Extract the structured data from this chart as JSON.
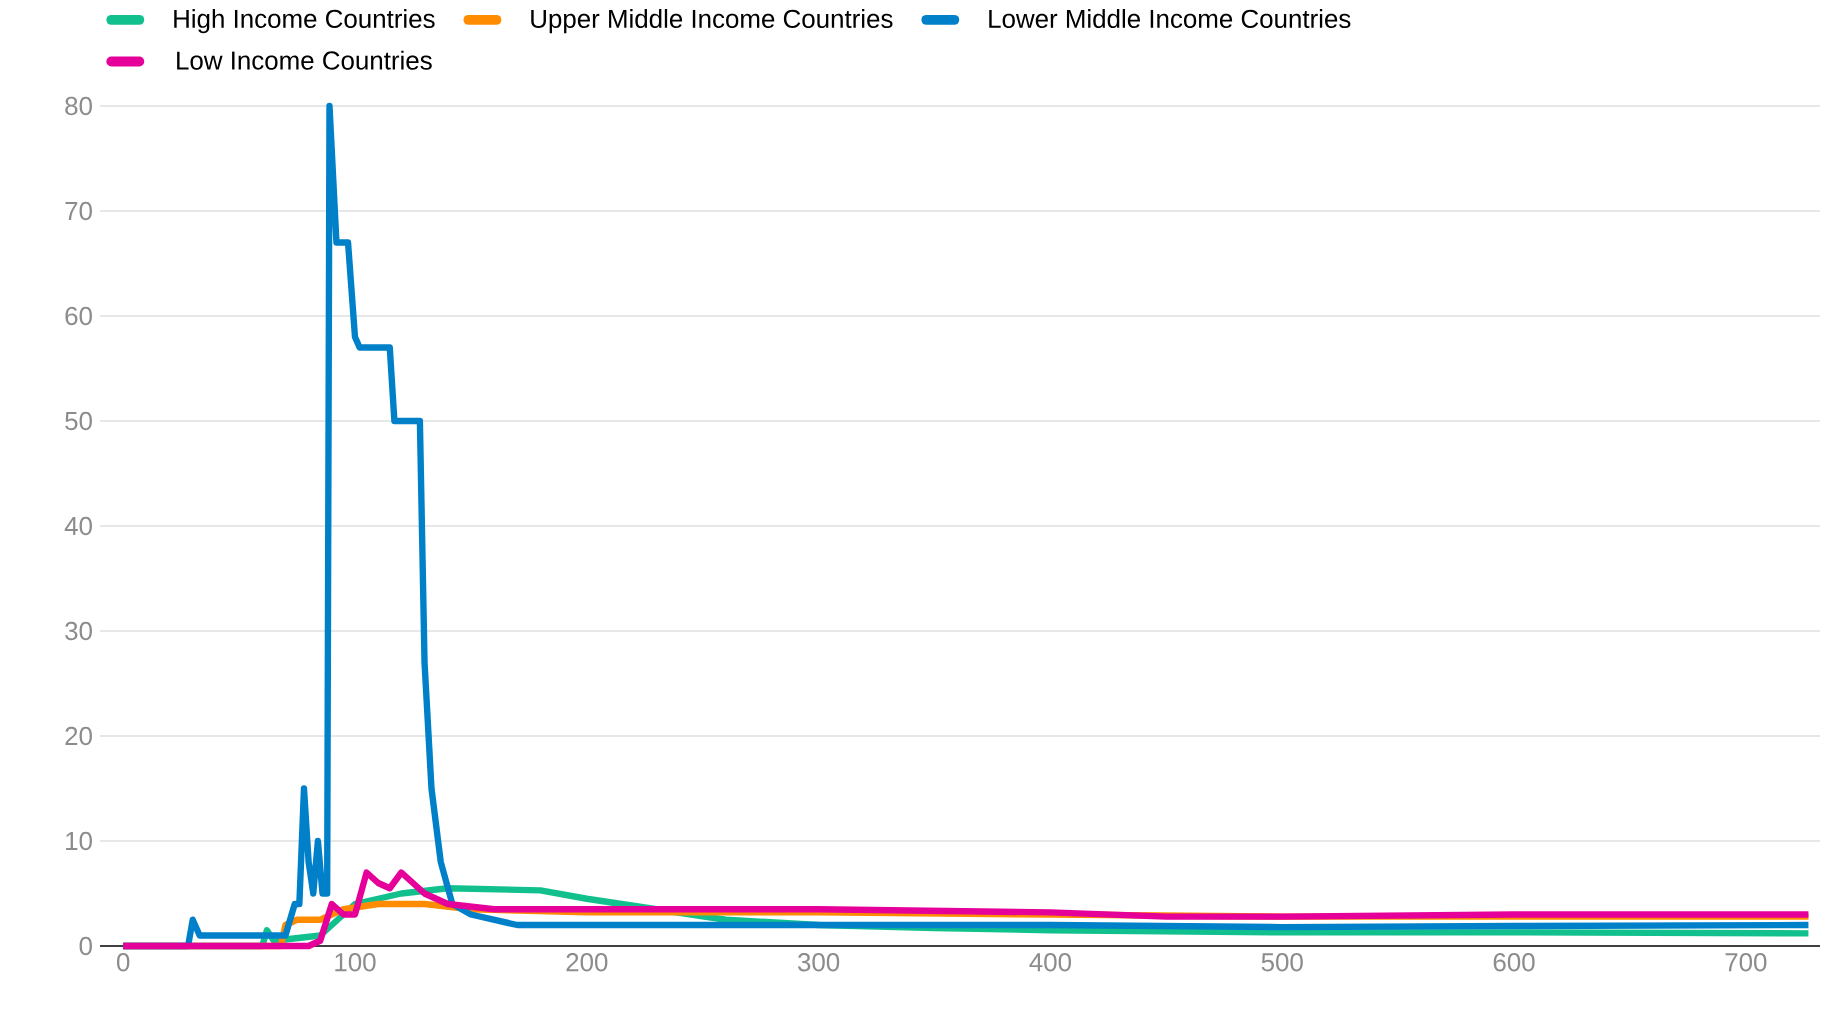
{
  "chart_data": {
    "type": "line",
    "xlim": [
      -10,
      732
    ],
    "ylim": [
      0,
      80
    ],
    "xticks": [
      0,
      100,
      200,
      300,
      400,
      500,
      600,
      700
    ],
    "yticks": [
      0,
      10,
      20,
      30,
      40,
      50,
      60,
      70,
      80
    ],
    "grid": "y",
    "legend": "top",
    "marker": "none",
    "line_style": "solid",
    "series": [
      {
        "name": "High Income Countries",
        "color": "#12c08e",
        "x": [
          0,
          60,
          62,
          65,
          85,
          100,
          120,
          140,
          180,
          200,
          230,
          260,
          300,
          350,
          400,
          500,
          600,
          727
        ],
        "values": [
          0,
          0,
          1.5,
          0.5,
          1,
          4,
          5,
          5.5,
          5.3,
          4.5,
          3.5,
          2.5,
          2,
          1.7,
          1.5,
          1.3,
          1.3,
          1.2
        ]
      },
      {
        "name": "Upper Middle Income Countries",
        "color": "#ff8c00",
        "x": [
          0,
          68,
          70,
          75,
          85,
          95,
          110,
          130,
          150,
          200,
          300,
          400,
          500,
          600,
          727
        ],
        "values": [
          0,
          0,
          2,
          2.5,
          2.5,
          3.5,
          4,
          4,
          3.5,
          3.2,
          3.2,
          3,
          2.8,
          2.8,
          2.8
        ]
      },
      {
        "name": "Lower Middle Income Countries",
        "color": "#0080c8",
        "x": [
          0,
          28,
          30,
          33,
          70,
          74,
          76,
          78,
          80,
          82,
          84,
          86,
          88,
          89,
          92,
          97,
          100,
          102,
          115,
          117,
          128,
          130,
          133,
          137,
          142,
          150,
          170,
          200,
          300,
          400,
          500,
          600,
          727
        ],
        "values": [
          0,
          0,
          2.5,
          1,
          1,
          4,
          4,
          15,
          8,
          5,
          10,
          5,
          5,
          80,
          67,
          67,
          58,
          57,
          57,
          50,
          50,
          27,
          15,
          8,
          4,
          3,
          2,
          2,
          2,
          2,
          1.8,
          1.9,
          2
        ]
      },
      {
        "name": "Low Income Countries",
        "color": "#e6009a",
        "x": [
          0,
          80,
          85,
          90,
          95,
          100,
          105,
          110,
          115,
          120,
          125,
          130,
          140,
          160,
          200,
          300,
          400,
          450,
          500,
          600,
          727
        ],
        "values": [
          0,
          0,
          0.5,
          4,
          3,
          3,
          7,
          6,
          5.5,
          7,
          6,
          5,
          4,
          3.5,
          3.5,
          3.5,
          3.2,
          2.8,
          2.8,
          3,
          3
        ]
      }
    ]
  }
}
